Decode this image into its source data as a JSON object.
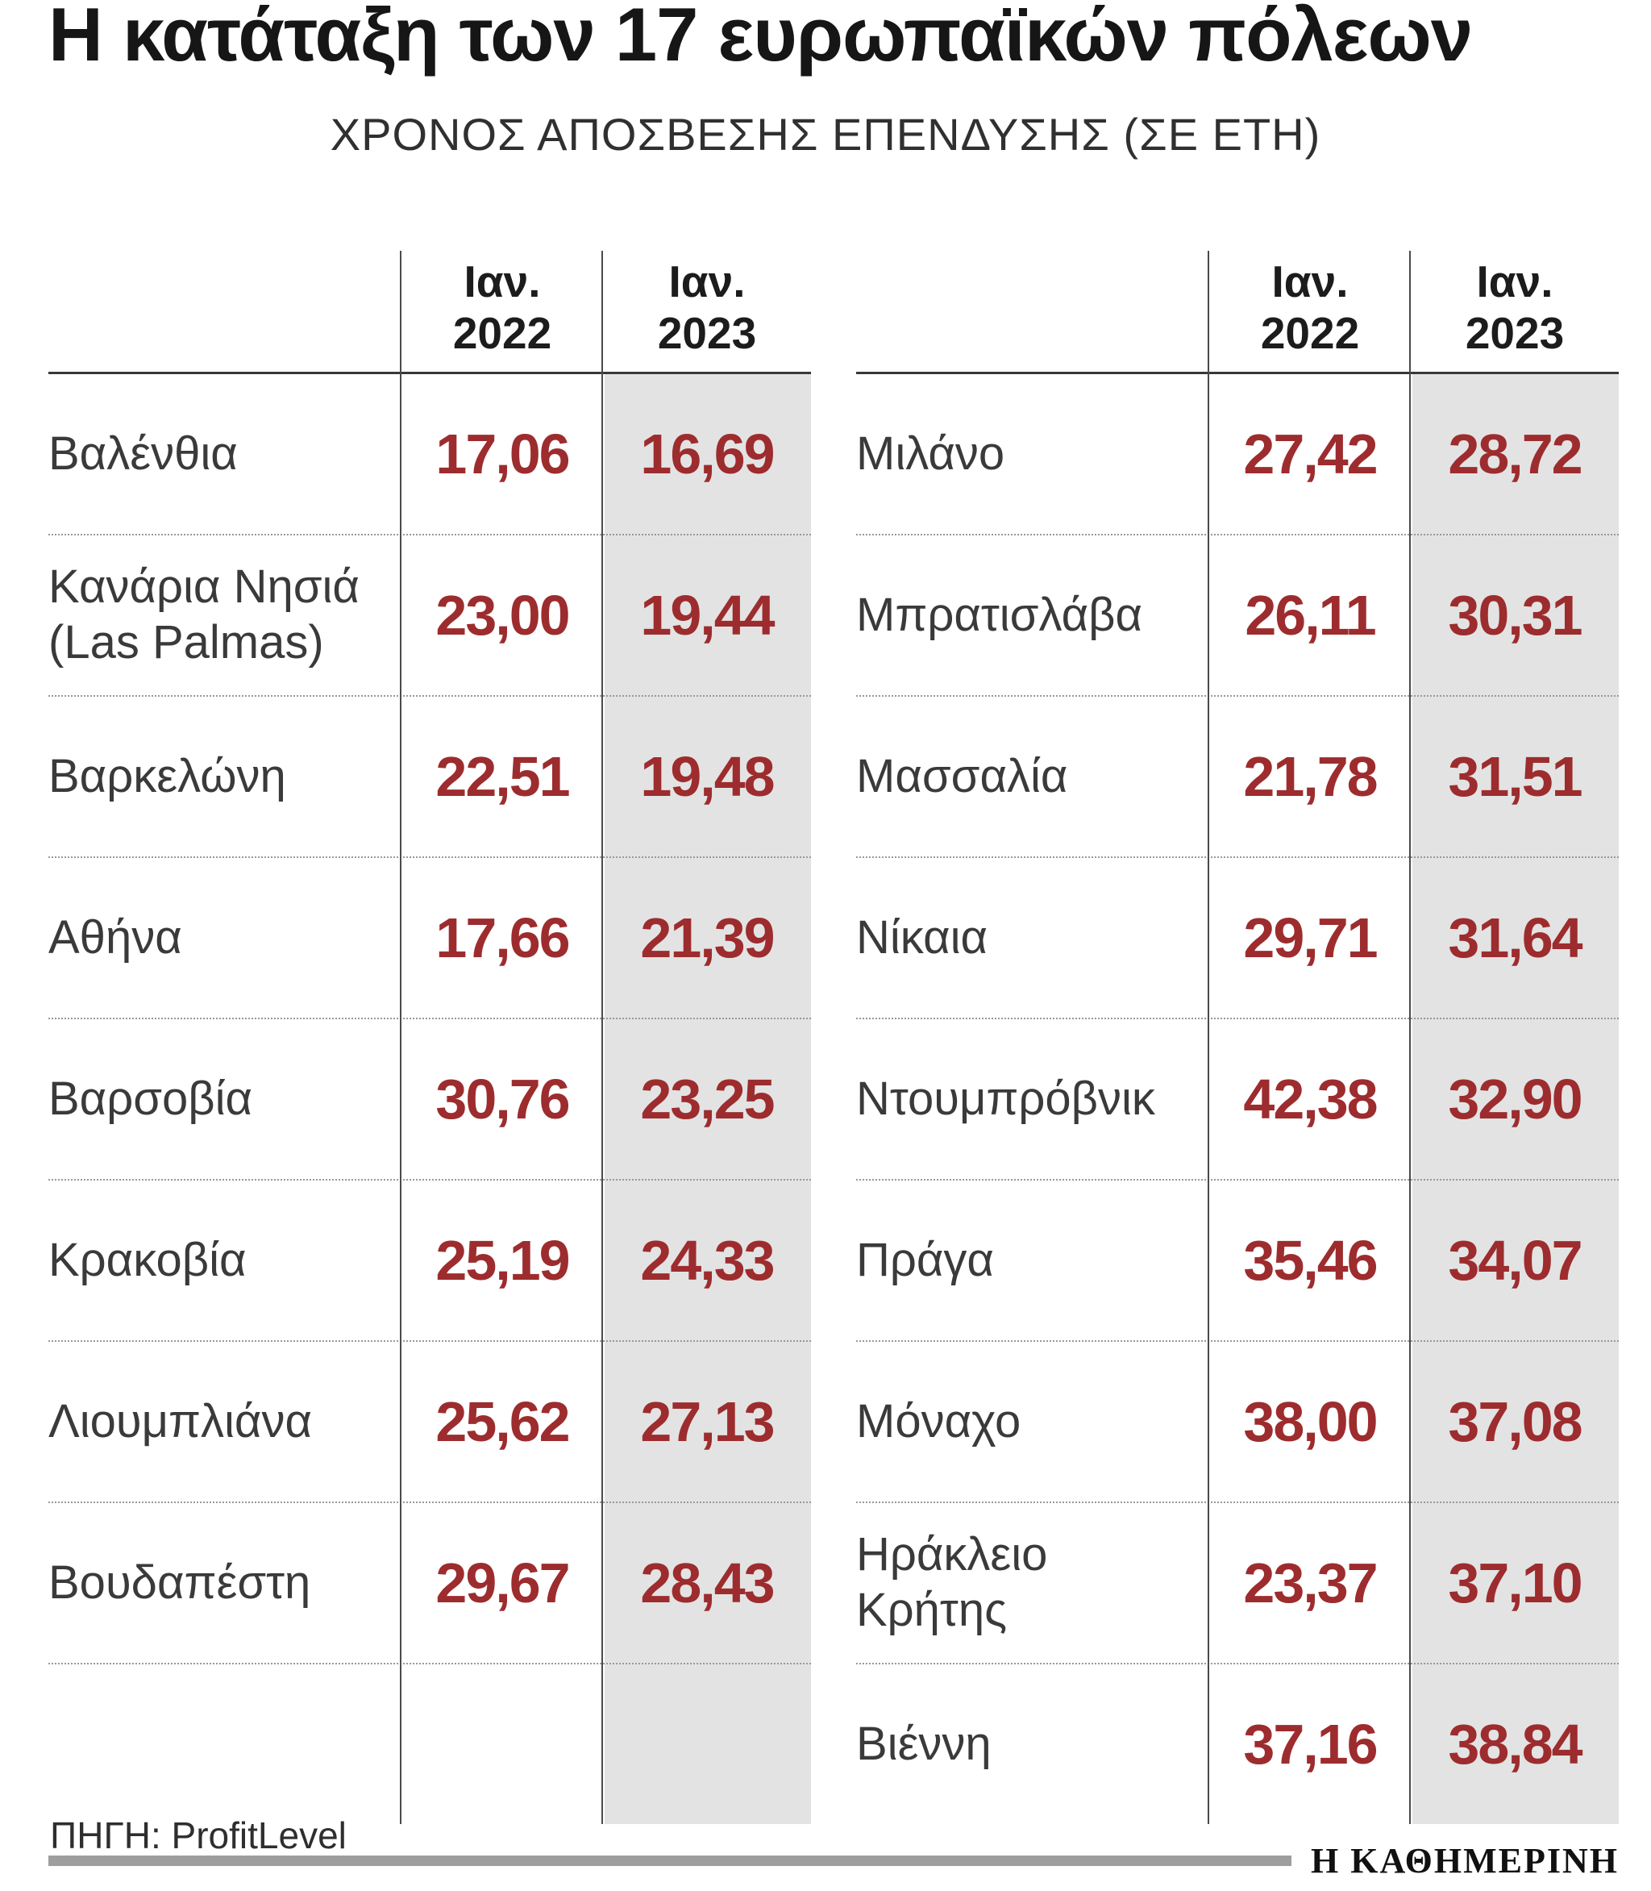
{
  "title": "Η κατάταξη των 17 ευρωπαϊκών πόλεων",
  "subtitle": "ΧΡΟΝΟΣ ΑΠΟΣΒΕΣΗΣ ΕΠΕΝΔΥΣΗΣ (ΣΕ ΕΤΗ)",
  "footer": {
    "source": "ΠΗΓΗ: ProfitLevel",
    "brand": "Η ΚΑΘΗΜΕΡΙΝΗ"
  },
  "colors": {
    "value_red": "#9d2c2e",
    "stripe_gray": "#e3e3e3",
    "rule_dark": "#383838",
    "dotted_gray": "#999999",
    "bar_gray": "#9e9e9e"
  },
  "chart_data": {
    "type": "table",
    "title": "Η κατάταξη των 17 ευρωπαϊκών πόλεων",
    "subtitle": "ΧΡΟΝΟΣ ΑΠΟΣΒΕΣΗΣ ΕΠΕΝΔΥΣΗΣ (ΣΕ ΕΤΗ)",
    "columns": [
      {
        "line1": "Ιαν.",
        "line2": "2022"
      },
      {
        "line1": "Ιαν.",
        "line2": "2023"
      }
    ],
    "tables": [
      {
        "rows": [
          {
            "city": "Βαλένθια",
            "values": [
              "17,06",
              "16,69"
            ]
          },
          {
            "city": "Κανάρια Νησιά (Las Palmas)",
            "values": [
              "23,00",
              "19,44"
            ]
          },
          {
            "city": "Βαρκελώνη",
            "values": [
              "22,51",
              "19,48"
            ]
          },
          {
            "city": "Αθήνα",
            "values": [
              "17,66",
              "21,39"
            ]
          },
          {
            "city": "Βαρσοβία",
            "values": [
              "30,76",
              "23,25"
            ]
          },
          {
            "city": "Κρακοβία",
            "values": [
              "25,19",
              "24,33"
            ]
          },
          {
            "city": "Λιουμπλιάνα",
            "values": [
              "25,62",
              "27,13"
            ]
          },
          {
            "city": "Βουδαπέστη",
            "values": [
              "29,67",
              "28,43"
            ]
          }
        ]
      },
      {
        "rows": [
          {
            "city": "Μιλάνο",
            "values": [
              "27,42",
              "28,72"
            ]
          },
          {
            "city": "Μπρατισλάβα",
            "values": [
              "26,11",
              "30,31"
            ]
          },
          {
            "city": "Μασσαλία",
            "values": [
              "21,78",
              "31,51"
            ]
          },
          {
            "city": "Νίκαια",
            "values": [
              "29,71",
              "31,64"
            ]
          },
          {
            "city": "Ντουμπρόβνικ",
            "values": [
              "42,38",
              "32,90"
            ]
          },
          {
            "city": "Πράγα",
            "values": [
              "35,46",
              "34,07"
            ]
          },
          {
            "city": "Μόναχο",
            "values": [
              "38,00",
              "37,08"
            ]
          },
          {
            "city": "Ηράκλειο Κρήτης",
            "values": [
              "23,37",
              "37,10"
            ]
          },
          {
            "city": "Βιέννη",
            "values": [
              "37,16",
              "38,84"
            ]
          }
        ]
      }
    ],
    "source": "ProfitLevel"
  }
}
